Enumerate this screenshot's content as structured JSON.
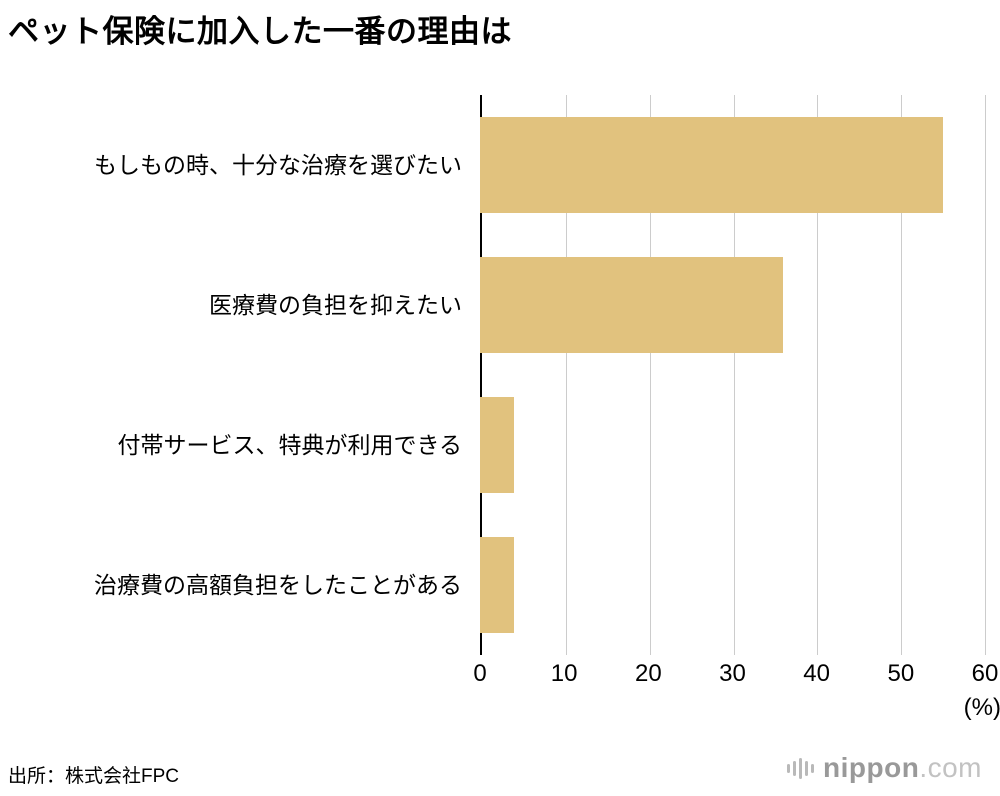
{
  "title": "ペット保険に加入した一番の理由は",
  "source": "出所：株式会社FPC",
  "logo": {
    "name": "nippon",
    "tld": ".com"
  },
  "chart_data": {
    "type": "bar",
    "orientation": "horizontal",
    "title": "ペット保険に加入した一番の理由は",
    "categories": [
      "もしもの時、十分な治療を選びたい",
      "医療費の負担を抑えたい",
      "付帯サービス、特典が利用できる",
      "治療費の高額負担をしたことがある"
    ],
    "values": [
      55,
      36,
      4,
      4
    ],
    "xlim": [
      0,
      60
    ],
    "xticks": [
      0,
      10,
      20,
      30,
      40,
      50,
      60
    ],
    "xunit": "(%)",
    "bar_color": "#e1c27e",
    "grid_color": "#cccccc",
    "axis_color": "#000000",
    "grid": true,
    "legend": false
  }
}
